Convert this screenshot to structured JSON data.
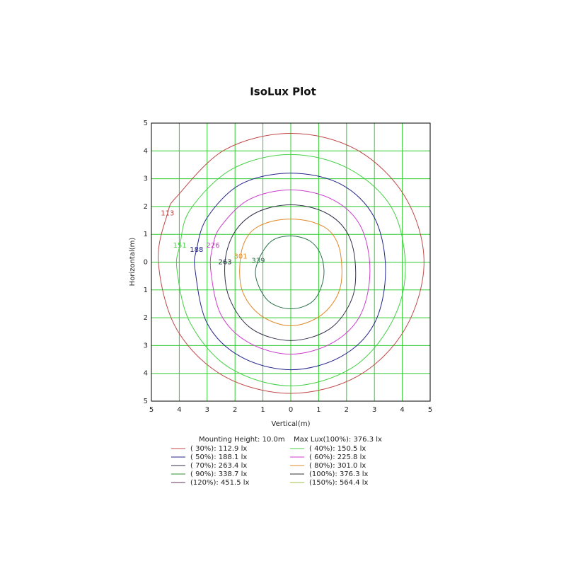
{
  "chart_data": {
    "type": "contour",
    "title": "IsoLux Plot",
    "x_label": "Vertical(m)",
    "y_label": "Horizontal(m)",
    "xlim": [
      -5,
      5
    ],
    "ylim": [
      -5,
      5
    ],
    "xticks": [
      {
        "value": -5,
        "label": "5"
      },
      {
        "value": -4,
        "label": "4"
      },
      {
        "value": -3,
        "label": "3"
      },
      {
        "value": -2,
        "label": "2"
      },
      {
        "value": -1,
        "label": "1"
      },
      0,
      1,
      2,
      3,
      4,
      5
    ],
    "yticks": [
      {
        "value": -5,
        "label": "5"
      },
      {
        "value": -4,
        "label": "4"
      },
      {
        "value": -3,
        "label": "3"
      },
      {
        "value": -2,
        "label": "2"
      },
      {
        "value": -1,
        "label": "1"
      },
      0,
      1,
      2,
      3,
      4,
      5
    ],
    "grid": true,
    "grid_color": "#33cc33",
    "series": [
      {
        "name": "113",
        "color": "#c04848",
        "x": [
          -4.42,
          -4.75,
          -4.1,
          -2.4,
          0,
          2.4,
          4.1,
          4.78,
          4.1,
          2.35,
          0,
          -2.35,
          -4.05
        ],
        "y": [
          1.75,
          0,
          -2.4,
          -4.1,
          -4.72,
          -4.1,
          -2.4,
          0,
          2.35,
          4.05,
          4.63,
          4.05,
          2.4
        ]
      },
      {
        "name": "151",
        "color": "#44d044",
        "x": [
          -3.98,
          -4.08,
          -3.6,
          -2.2,
          0,
          2.2,
          3.6,
          4.11,
          3.65,
          2.1,
          0,
          -2.1,
          -3.6
        ],
        "y": [
          0.6,
          -0.3,
          -2.2,
          -3.8,
          -4.45,
          -3.8,
          -2.2,
          -0.3,
          1.9,
          3.35,
          3.87,
          3.35,
          1.9
        ]
      },
      {
        "name": "188",
        "color": "#24248c",
        "x": [
          -3.38,
          -3.43,
          -3.0,
          -1.8,
          0,
          1.8,
          3.0,
          3.4,
          3.0,
          1.8,
          0,
          -1.8,
          -3.0
        ],
        "y": [
          0.45,
          -0.3,
          -2.2,
          -3.4,
          -3.87,
          -3.4,
          -2.2,
          -0.3,
          1.6,
          2.8,
          3.2,
          2.8,
          1.6
        ]
      },
      {
        "name": "226",
        "color": "#cc3ccc",
        "x": [
          -2.79,
          -2.87,
          -2.5,
          -1.5,
          0,
          1.5,
          2.5,
          2.84,
          2.5,
          1.5,
          0,
          -1.5,
          -2.5
        ],
        "y": [
          0.6,
          -0.3,
          -1.9,
          -2.9,
          -3.31,
          -2.9,
          -1.9,
          -0.3,
          1.3,
          2.25,
          2.6,
          2.25,
          1.3
        ]
      },
      {
        "name": "263",
        "color": "#303048",
        "x": [
          -2.36,
          -2.2,
          -1.4,
          0,
          1.4,
          2.2,
          2.31,
          2.0,
          1.2,
          0,
          -1.2,
          -2.0
        ],
        "y": [
          0,
          -1.3,
          -2.4,
          -2.82,
          -2.4,
          -1.3,
          0,
          1.1,
          1.8,
          2.06,
          1.8,
          1.1
        ]
      },
      {
        "name": "301",
        "color": "#e08828",
        "x": [
          -1.8,
          -1.75,
          -1.1,
          0,
          1.1,
          1.75,
          1.8,
          1.5,
          0.9,
          0,
          -0.9,
          -1.5
        ],
        "y": [
          0.2,
          -1.0,
          -1.9,
          -2.29,
          -1.9,
          -1.0,
          0.2,
          1.0,
          1.4,
          1.55,
          1.4,
          1.0
        ]
      },
      {
        "name": "339",
        "color": "#287048",
        "x": [
          -1.17,
          -1.24,
          -0.8,
          0,
          0.8,
          1.17,
          1.1,
          0.7,
          0,
          -0.7
        ],
        "y": [
          0.05,
          -0.6,
          -1.4,
          -1.68,
          -1.4,
          -0.6,
          0.2,
          0.75,
          0.94,
          0.75
        ]
      }
    ],
    "info": [
      "Mounting Height: 10.0m",
      "Max Lux(100%): 376.3 lx"
    ],
    "legend": [
      {
        "name": "( 30%): 112.9 lx",
        "color": "#c04848"
      },
      {
        "name": "( 40%): 150.5 lx",
        "color": "#44d044"
      },
      {
        "name": "( 50%): 188.1 lx",
        "color": "#24248c"
      },
      {
        "name": "( 60%): 225.8 lx",
        "color": "#cc3ccc"
      },
      {
        "name": "( 70%): 263.4 lx",
        "color": "#303048"
      },
      {
        "name": "( 80%): 301.0 lx",
        "color": "#e08828"
      },
      {
        "name": "( 90%): 338.7 lx",
        "color": "#309030"
      },
      {
        "name": "(100%): 376.3 lx",
        "color": "#333333"
      },
      {
        "name": "(120%): 451.5 lx",
        "color": "#603060"
      },
      {
        "name": "(150%): 564.4 lx",
        "color": "#a0c040"
      }
    ]
  }
}
